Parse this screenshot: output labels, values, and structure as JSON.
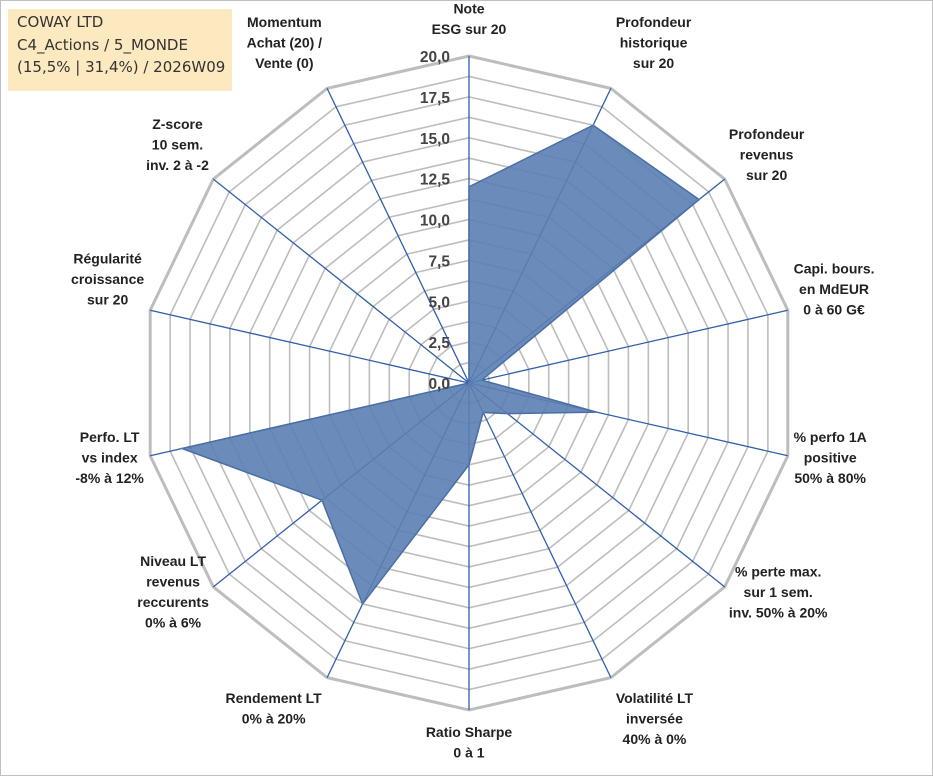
{
  "info": {
    "company": "COWAY LTD",
    "category": "C4_Actions / 5_MONDE",
    "stats": "(15,5% | 31,4%) / 2026W09"
  },
  "chart_data": {
    "type": "radar",
    "title": "COWAY LTD",
    "rmin": 0,
    "rmax": 20,
    "tick_step": 2.5,
    "ticks": [
      "0,0",
      "2,5",
      "5,0",
      "7,5",
      "10,0",
      "12,5",
      "15,0",
      "17,5",
      "20,0"
    ],
    "fill_color": "#5b7fb3",
    "axis_color": "#2f5fa8",
    "grid_color": "#bdbdbd",
    "axes": [
      {
        "label": [
          "Note",
          "ESG sur 20"
        ],
        "value": 12.0
      },
      {
        "label": [
          "Profondeur",
          "historique",
          "sur 20"
        ],
        "value": 17.5
      },
      {
        "label": [
          "Profondeur",
          "revenus",
          "sur 20"
        ],
        "value": 18.0
      },
      {
        "label": [
          "Capi. bours.",
          "en MdEUR",
          "0 à 60 G€"
        ],
        "value": 0.8
      },
      {
        "label": [
          "% perfo 1A",
          "positive",
          "50% à 80%"
        ],
        "value": 8.0
      },
      {
        "label": [
          "% perte max.",
          "sur 1 sem.",
          "inv. 50% à 20%"
        ],
        "value": 3.0
      },
      {
        "label": [
          "Volatilité LT",
          "inversée",
          "40% à 0%"
        ],
        "value": 2.0
      },
      {
        "label": [
          "Ratio Sharpe",
          "0 à 1"
        ],
        "value": 5.0
      },
      {
        "label": [
          "Rendement LT",
          "0% à 20%"
        ],
        "value": 15.0
      },
      {
        "label": [
          "Niveau LT",
          "revenus",
          "reccurents",
          "0% à 6%"
        ],
        "value": 11.5
      },
      {
        "label": [
          "Perfo. LT",
          "vs index",
          "-8% à 12%"
        ],
        "value": 18.0
      },
      {
        "label": [
          "Régularité",
          "croissance",
          "sur 20"
        ],
        "value": 0.0
      },
      {
        "label": [
          "Z-score",
          "10 sem.",
          "inv. 2 à -2"
        ],
        "value": 0.0
      },
      {
        "label": [
          "Momentum",
          "Achat (20) /",
          "Vente (0)"
        ],
        "value": 0.0
      }
    ]
  }
}
